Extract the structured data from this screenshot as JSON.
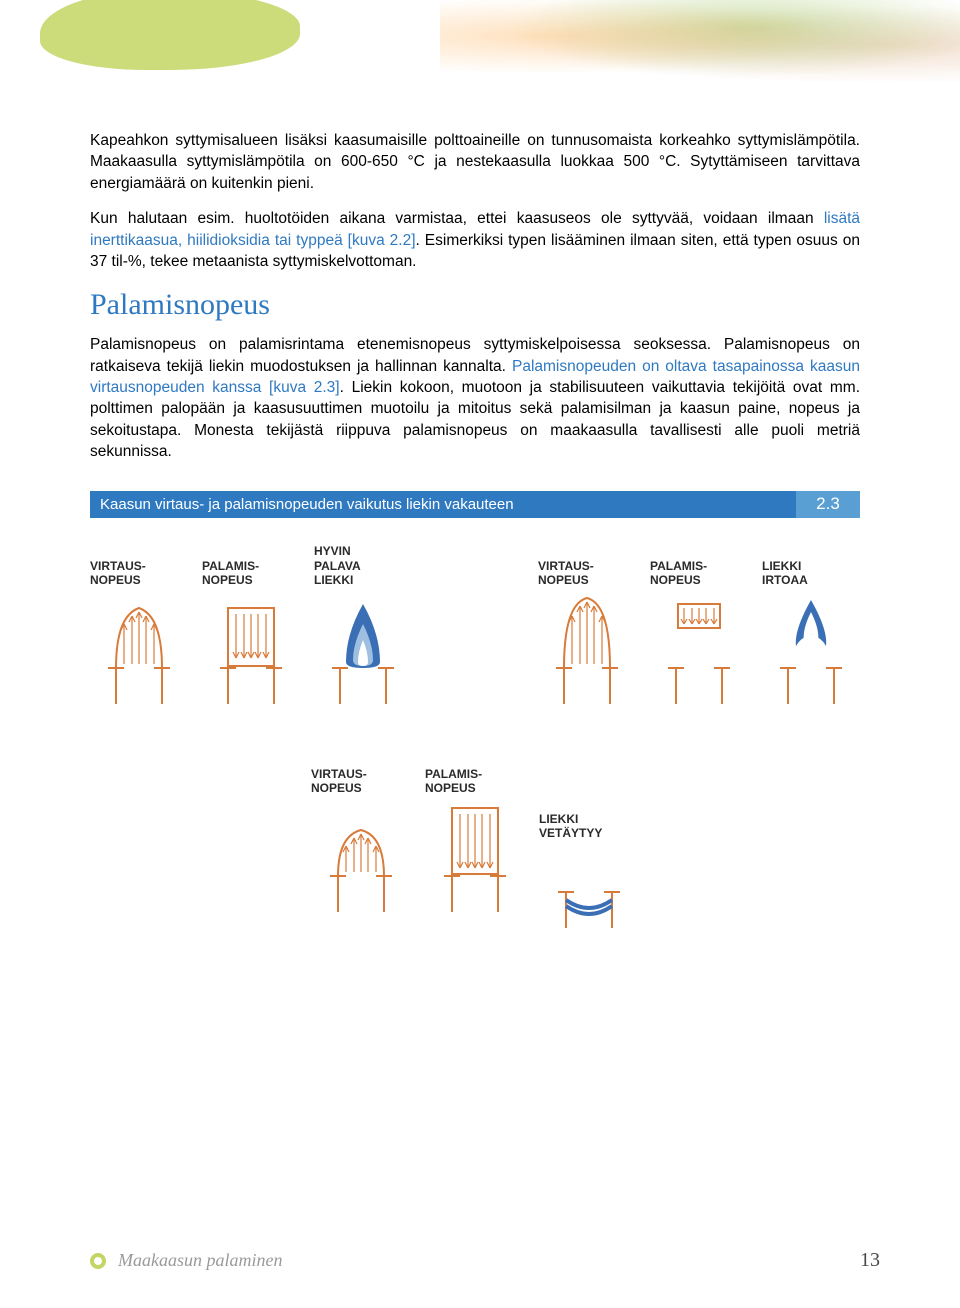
{
  "colors": {
    "blue_primary": "#2f79c1",
    "blue_light": "#5a9fd4",
    "green_accent": "#c3d663",
    "orange_stroke": "#d87a3a",
    "grey_text": "#9a9a9a"
  },
  "para1": {
    "t1": "Kapeahkon syttymisalueen lisäksi kaasumaisille polttoaineille on tunnusomaista korkeahko syttymislämpötila. Maakaasulla syttymislämpötila on 600-650 °C ja nestekaasulla luokkaa 500 °C. Sytyttämiseen tarvittava energiamäärä on kuitenkin pieni."
  },
  "para2": {
    "t1": "Kun halutaan esim. huoltotöiden aikana varmistaa, ettei kaasuseos ole syttyvää, voidaan ilmaan ",
    "blue": "lisätä inerttikaasua, hiilidioksidia tai typpeä [kuva 2.2]",
    "t2": ". Esimerkiksi typen lisääminen ilmaan siten, että typen osuus on 37 til-%, tekee metaanista syttymiskelvottoman."
  },
  "heading": "Palamisnopeus",
  "para3": {
    "t1": "Palamisnopeus on palamisrintama etenemisnopeus syttymiskelpoisessa seoksessa. Palamisnopeus on ratkaiseva tekijä liekin muodostuksen ja hallinnan kannalta. ",
    "blue": "Palamisnopeuden on oltava tasapainossa kaasun virtausnopeuden kanssa [kuva 2.3]",
    "t2": ". Liekin kokoon, muotoon ja stabilisuuteen vaikuttavia tekijöitä ovat mm. polttimen palopään ja kaasusuuttimen muotoilu ja mitoitus sekä palamisilman ja kaasun paine, nopeus ja sekoitustapa. Monesta tekijästä riippuva palamisnopeus on maakaasulla tavallisesti alle puoli metriä sekunnissa."
  },
  "caption": {
    "text": "Kaasun virtaus- ja palamisnopeuden vaikutus liekin vakauteen",
    "num": "2.3"
  },
  "labels": {
    "virtaus": "VIRTAUS-\nNOPEUS",
    "palamis": "PALAMIS-\nNOPEUS",
    "hyvin": "HYVIN\nPALAVA\nLIEKKI",
    "irtoaa": "LIEKKI\nIRTOAA",
    "vetay": "LIEKKI\nVETÄYTYY"
  },
  "footer": {
    "title": "Maakaasun palaminen",
    "page": "13"
  },
  "diagram_style": {
    "pipe_stroke": "#d87a3a",
    "pipe_stroke_width": 2,
    "arrow_stroke": "#d87a3a",
    "arrow_stroke_width": 1.2,
    "flame_blue_outer": "#3a6fb5",
    "flame_blue_inner": "#ffffff"
  }
}
